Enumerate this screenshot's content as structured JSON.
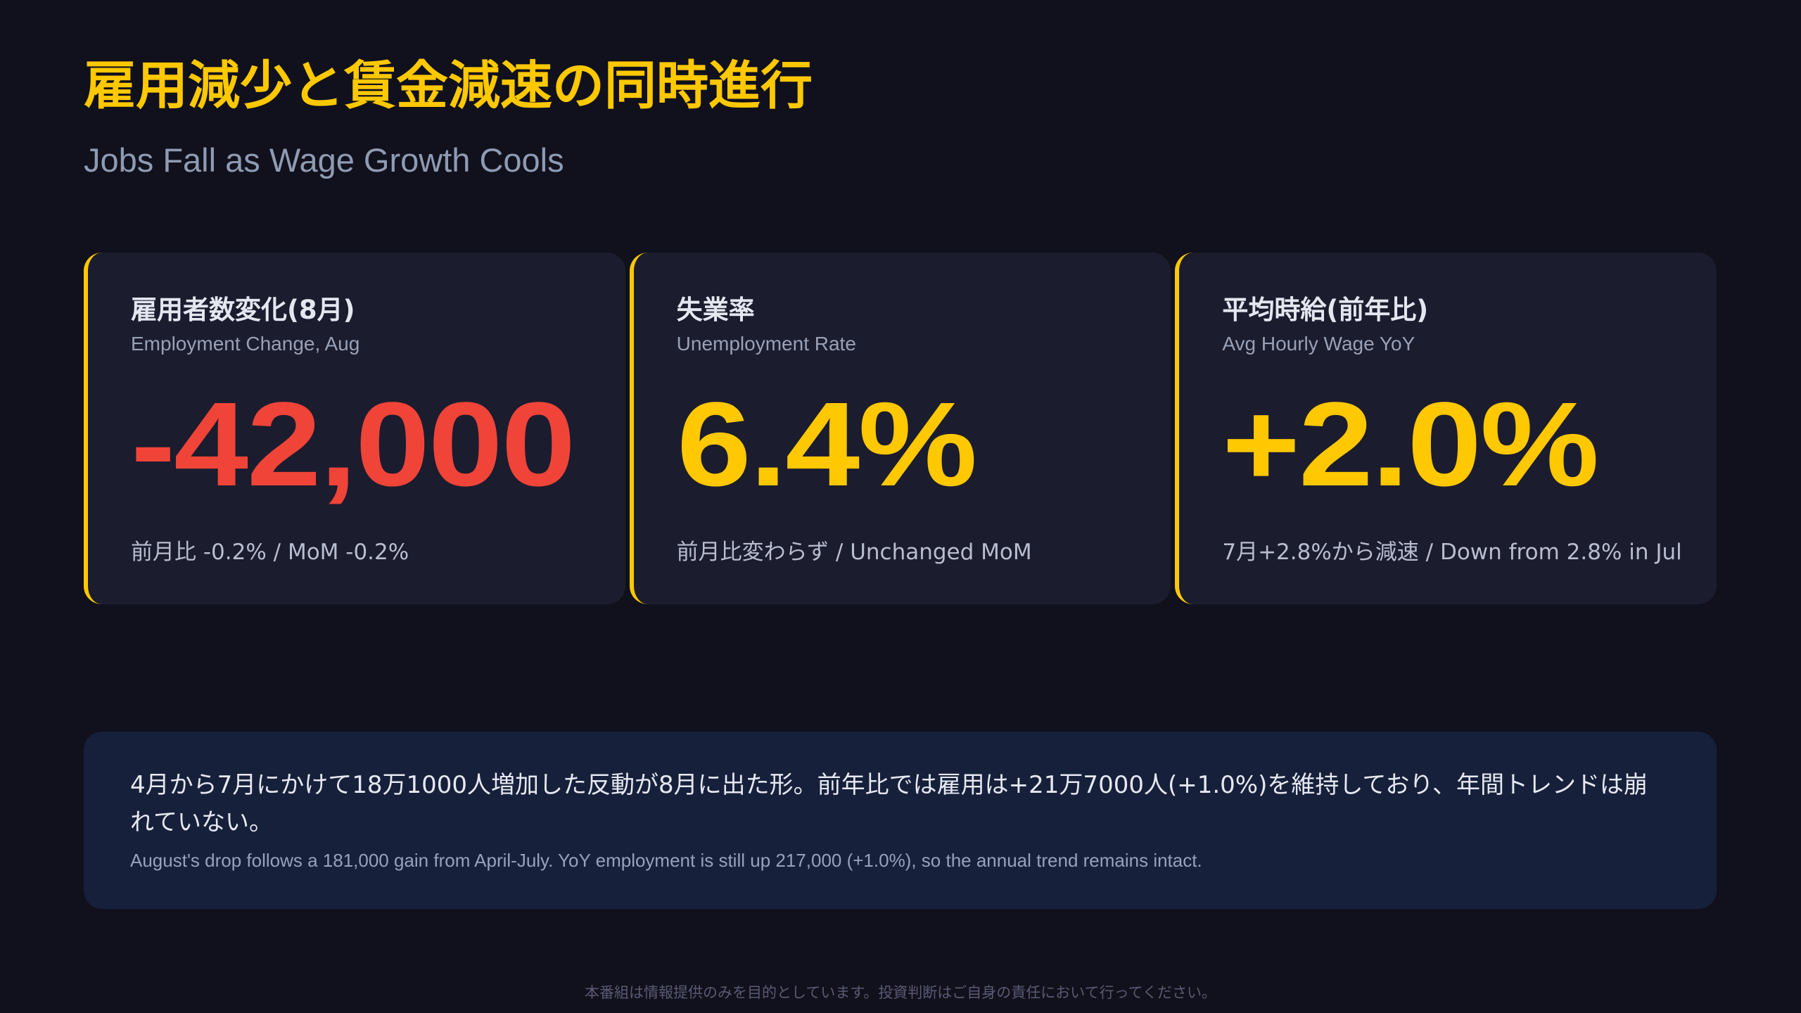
{
  "header": {
    "title": "雇用減少と賃金減速の同時進行",
    "subtitle": "Jobs Fall as Wage Growth Cools"
  },
  "cards": [
    {
      "label_ja": "雇用者数変化(8月)",
      "label_en": "Employment Change, Aug",
      "value": "-42,000",
      "note": "前月比 -0.2% / MoM -0.2%"
    },
    {
      "label_ja": "失業率",
      "label_en": "Unemployment Rate",
      "value": "6.4%",
      "note": "前月比変わらず / Unchanged MoM"
    },
    {
      "label_ja": "平均時給(前年比)",
      "label_en": "Avg Hourly Wage YoY",
      "value": "+2.0%",
      "note": "7月+2.8%から減速 / Down from 2.8% in Jul"
    }
  ],
  "summary": {
    "ja": "4月から7月にかけて18万1000人増加した反動が8月に出た形。前年比では雇用は+21万7000人(+1.0%)を維持しており、年間トレンドは崩れていない。",
    "en": "August's drop follows a 181,000 gain from April-July. YoY employment is still up 217,000 (+1.0%), so the annual trend remains intact."
  },
  "footer": "本番組は情報提供のみを目的としています。投資判断はご自身の責任において行ってください。"
}
